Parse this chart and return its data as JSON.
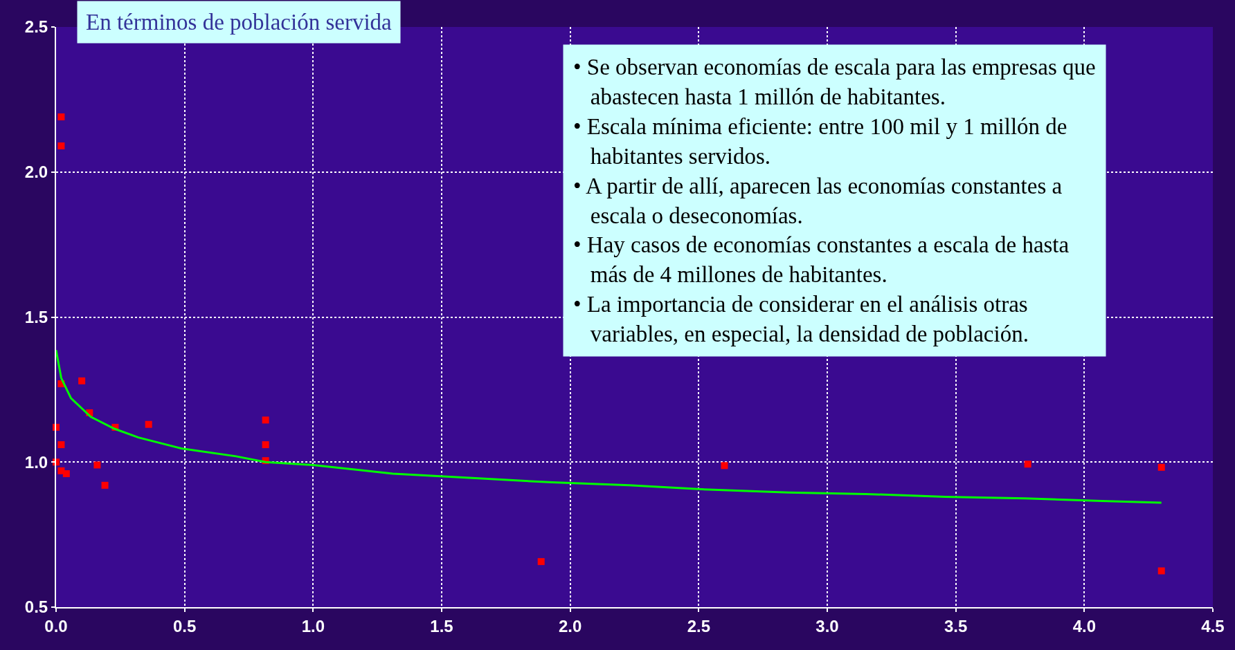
{
  "chart_data": {
    "type": "scatter",
    "annotations": [
      "En términos de población servida",
      "• Se observan economías de escala para las empresas que abastecen hasta 1 millón de habitantes.",
      "• Escala mínima eficiente: entre 100 mil y 1 millón de habitantes servidos.",
      "• A partir de allí, aparecen las economías constantes a escala o deseconomías.",
      "• Hay casos de economías constantes a escala de hasta más de 4 millones de habitantes.",
      "• La importancia de considerar en el análisis otras variables, en especial, la densidad de población."
    ],
    "xlim": [
      0,
      4.5
    ],
    "ylim": [
      0.5,
      2.5
    ],
    "xticks": [
      {
        "value": 0,
        "label": "0.0"
      },
      0.5,
      {
        "value": 1,
        "label": "1.0"
      },
      1.5,
      {
        "value": 2,
        "label": "2.0"
      },
      2.5,
      {
        "value": 3,
        "label": "3.0"
      },
      3.5,
      {
        "value": 4,
        "label": "4.0"
      },
      4.5
    ],
    "yticks": [
      0.5,
      {
        "value": 1,
        "label": "1.0"
      },
      1.5,
      {
        "value": 2,
        "label": "2.0"
      },
      2.5
    ],
    "grid": true,
    "series": [
      {
        "marker": "square",
        "color": "#ff0000",
        "x": [
          0.02,
          0.02,
          0.02,
          0.1,
          0.13,
          0.0,
          0.23,
          0.36,
          0.02,
          0.0,
          0.02,
          0.04,
          0.16,
          0.19,
          0.815,
          0.815,
          0.815,
          1.887,
          2.6,
          3.78,
          4.3,
          4.3
        ],
        "values": [
          2.19,
          2.09,
          1.27,
          1.28,
          1.17,
          1.12,
          1.12,
          1.13,
          1.06,
          1.0,
          0.97,
          0.96,
          0.99,
          0.92,
          1.145,
          1.06,
          1.005,
          0.657,
          0.988,
          0.993,
          0.982,
          0.625
        ]
      },
      {
        "type": "line",
        "marker": "none",
        "color": "#00ff00",
        "x": [
          0.0,
          0.02,
          0.058,
          0.135,
          0.227,
          0.32,
          0.487,
          0.7,
          0.815,
          1.0,
          1.31,
          1.62,
          1.93,
          2.23,
          2.54,
          2.85,
          3.15,
          3.46,
          3.77,
          4.07,
          4.3
        ],
        "values": [
          1.386,
          1.29,
          1.22,
          1.156,
          1.115,
          1.085,
          1.047,
          1.02,
          1.0,
          0.99,
          0.96,
          0.945,
          0.93,
          0.92,
          0.905,
          0.895,
          0.89,
          0.88,
          0.875,
          0.866,
          0.86
        ]
      }
    ]
  }
}
